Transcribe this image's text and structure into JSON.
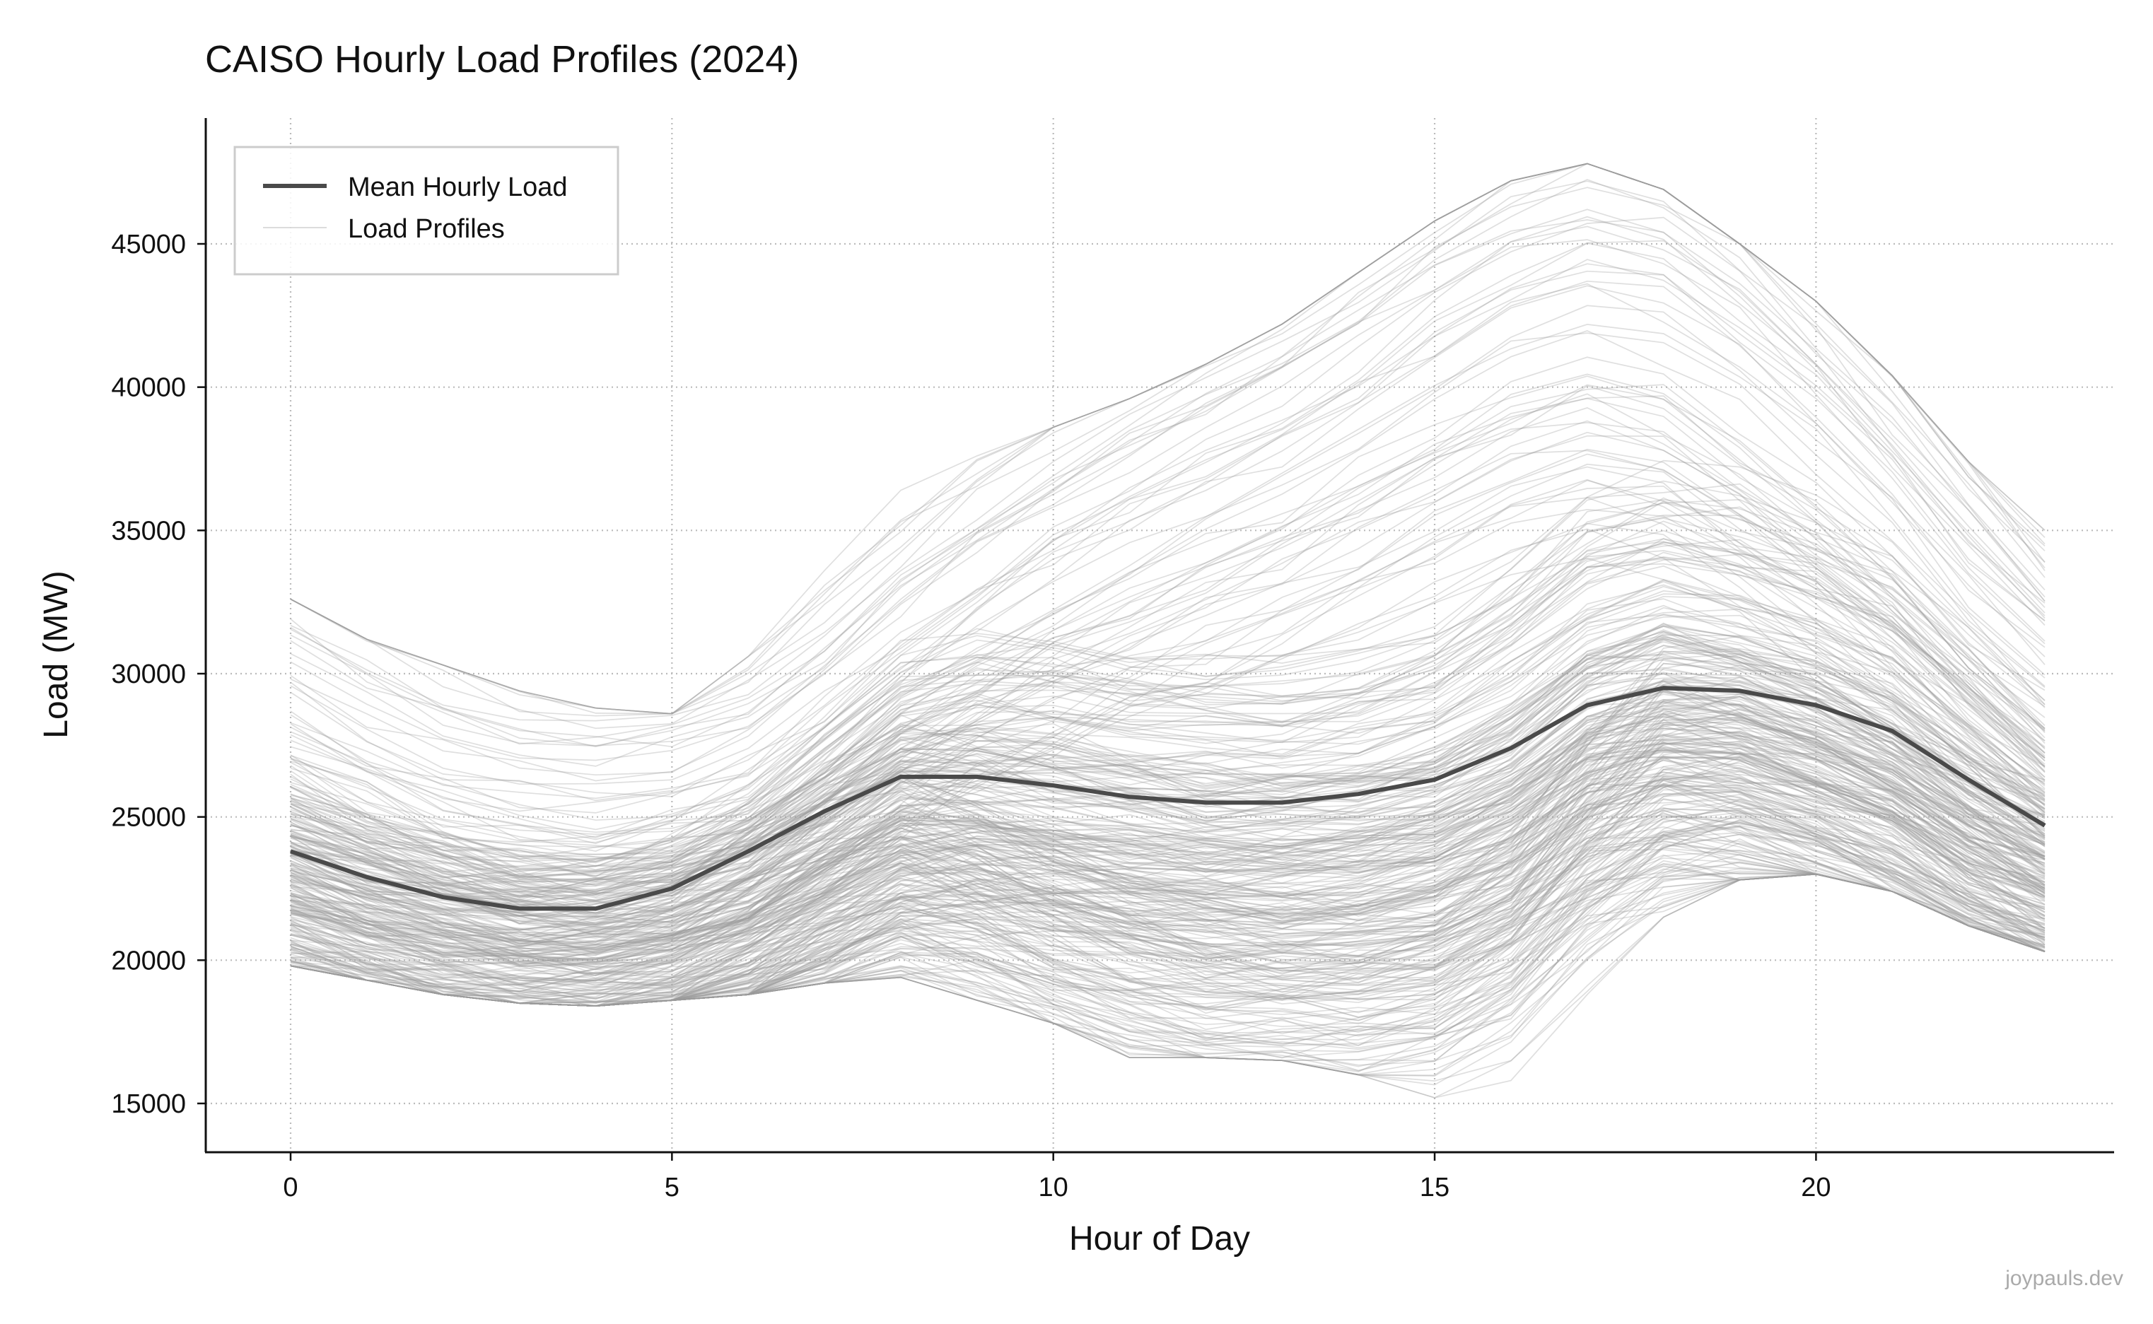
{
  "chart_data": {
    "type": "line",
    "title": "CAISO Hourly Load Profiles (2024)",
    "xlabel": "Hour of Day",
    "ylabel": "Load (MW)",
    "xlim": [
      -1.15,
      24.15
    ],
    "ylim": [
      13400,
      49500
    ],
    "x_ticks": [
      0,
      5,
      10,
      15,
      20
    ],
    "y_ticks": [
      15000,
      20000,
      25000,
      30000,
      35000,
      40000,
      45000
    ],
    "grid": true,
    "legend_position": "top-left",
    "watermark": "joypauls.dev",
    "colors": {
      "mean": "#4a4a4a",
      "profiles": "#9a9a9a",
      "grid": "#bbbbbb",
      "axis": "#111111"
    },
    "x": [
      0,
      1,
      2,
      3,
      4,
      5,
      6,
      7,
      8,
      9,
      10,
      11,
      12,
      13,
      14,
      15,
      16,
      17,
      18,
      19,
      20,
      21,
      22,
      23
    ],
    "series": [
      {
        "name": "Mean Hourly Load",
        "values": [
          23800,
          22900,
          22200,
          21800,
          21800,
          22500,
          23800,
          25200,
          26400,
          26400,
          26100,
          25700,
          25500,
          25500,
          25800,
          26300,
          27400,
          28900,
          29500,
          29400,
          28900,
          28000,
          26300,
          24700
        ]
      },
      {
        "name": "Load Profiles",
        "count": 366,
        "envelope_min": [
          19800,
          19300,
          18800,
          18500,
          18400,
          18600,
          18800,
          19200,
          19400,
          18600,
          17800,
          16600,
          16600,
          16500,
          16000,
          15200,
          15800,
          18800,
          21500,
          22800,
          23000,
          22400,
          21200,
          20300
        ],
        "envelope_max": [
          32600,
          31200,
          30300,
          29400,
          28800,
          28600,
          30600,
          33600,
          36400,
          37600,
          38600,
          39600,
          40800,
          42200,
          44000,
          45800,
          47200,
          47800,
          46900,
          45000,
          43000,
          40400,
          37400,
          35000
        ]
      }
    ]
  }
}
